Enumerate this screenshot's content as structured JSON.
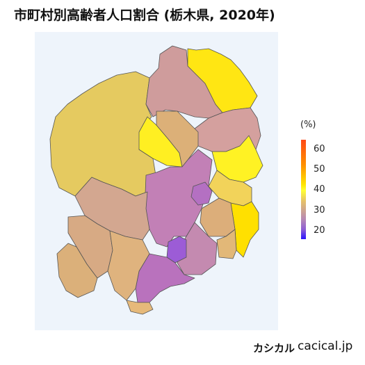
{
  "title": "市町村別高齢者人口割合 (栃木県, 2020年)",
  "legend": {
    "unit": "(%)",
    "ticks": [
      "60",
      "50",
      "40",
      "30",
      "20"
    ]
  },
  "footer": {
    "brand": "カシカル",
    "site": "cacical.jp"
  },
  "colors": {
    "background": "#eef4fb",
    "high": "#ff4a17",
    "yellow": "#ffe500",
    "low": "#2a14ff",
    "border": "#555555"
  }
}
